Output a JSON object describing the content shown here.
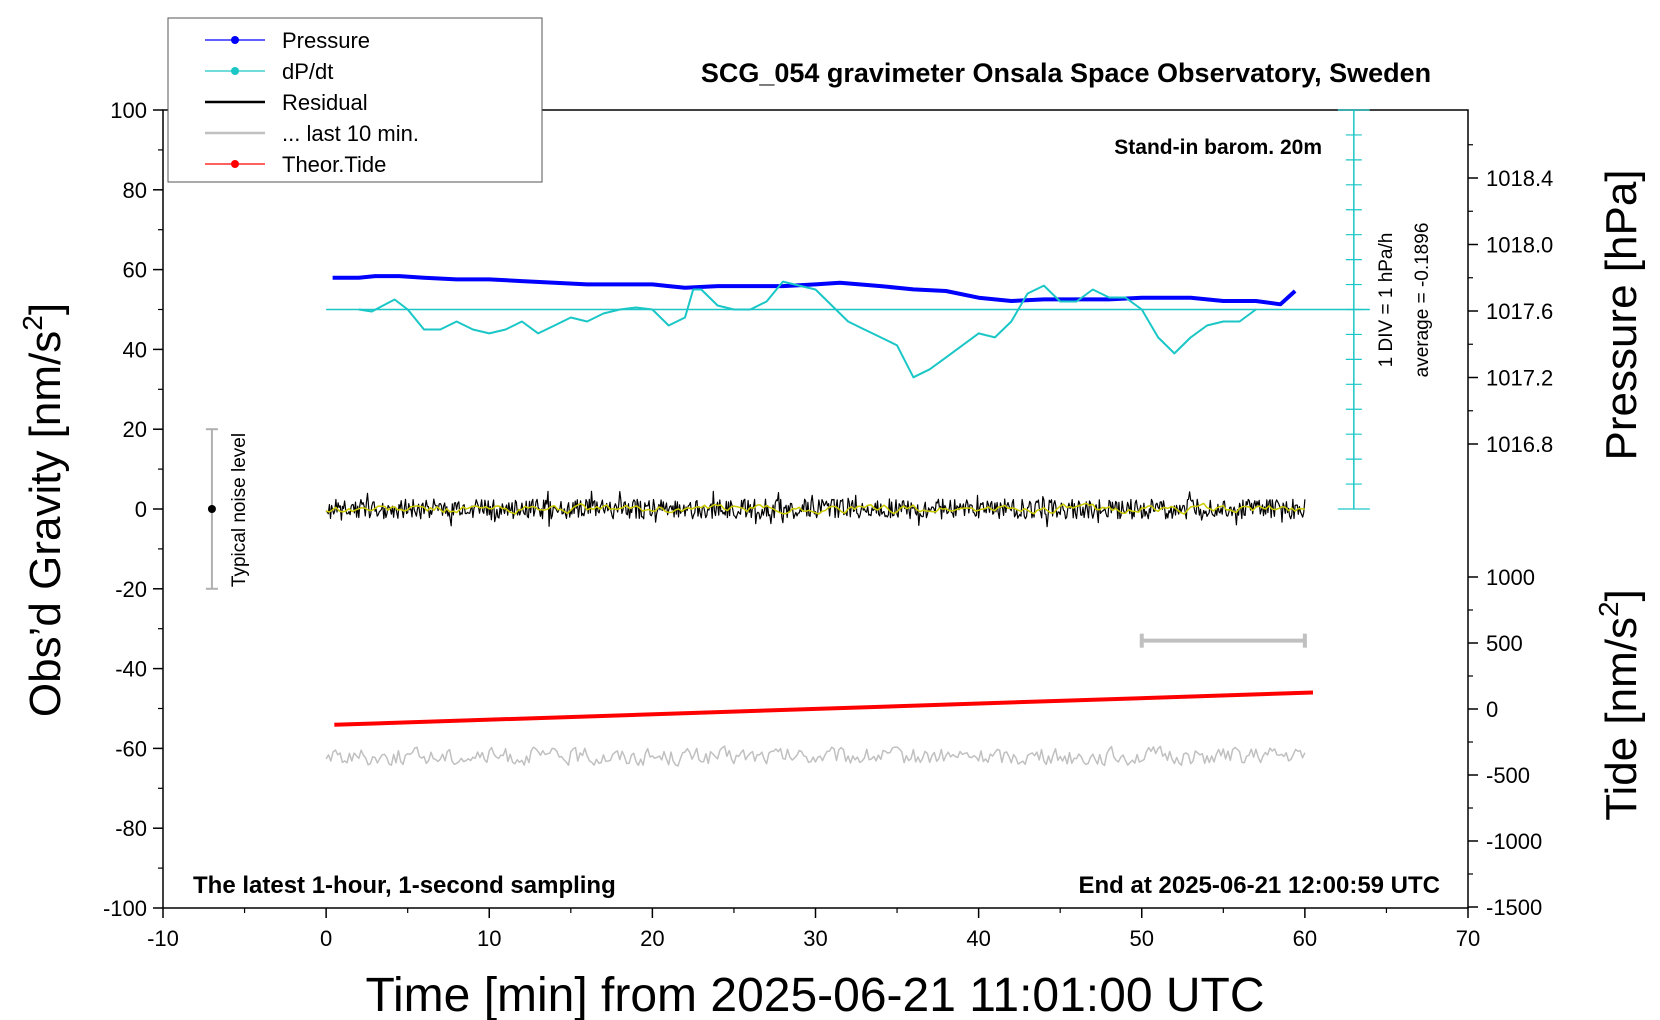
{
  "chart_data": {
    "type": "line",
    "title": "SCG_054 gravimeter Onsala Space Observatory, Sweden",
    "subtitle": "Stand-in barom. 20m",
    "footer_left": "The latest 1-hour, 1-second sampling",
    "footer_right": "End at 2025-06-21 12:00:59 UTC",
    "xlabel": "Time [min] from 2025-06-21 11:01:00 UTC",
    "xlim": [
      -10,
      70
    ],
    "xticks": [
      "-10",
      "0",
      "10",
      "20",
      "30",
      "40",
      "50",
      "60",
      "70"
    ],
    "ylabel_left": "Obs’d Gravity [nm/s",
    "ylabel_left_sup": "2",
    "ylabel_left_end": "]",
    "ylim": [
      -100,
      100
    ],
    "yticks_left": [
      "-100",
      "-80",
      "-60",
      "-40",
      "-20",
      "0",
      "20",
      "40",
      "60",
      "80",
      "100"
    ],
    "pressure_axis": {
      "label": "Pressure [hPa]",
      "ticks": [
        "1016.8",
        "1017.2",
        "1017.6",
        "1018.0",
        "1018.4"
      ],
      "tick_values": [
        1016.8,
        1017.2,
        1017.6,
        1018.0,
        1018.4
      ]
    },
    "tide_axis": {
      "label": "Tide [nm/s",
      "label_sup": "2",
      "label_end": "]",
      "ticks": [
        "-1500",
        "-1000",
        "-500",
        "0",
        "500",
        "1000"
      ],
      "tick_values": [
        -1500,
        -1000,
        -500,
        0,
        500,
        1000
      ]
    },
    "dpdt_scale": {
      "label1": "1 DIV = 1 hPa/h",
      "label2": "average = -0.1896",
      "baseline_gravity": 50
    },
    "noise_label": "Typical noise level",
    "noise_bar": {
      "x": -7,
      "center": 0,
      "half_range": 20
    },
    "ten_min_bar": {
      "x_start": 50,
      "x_end": 60,
      "y": -33
    },
    "legend": [
      {
        "label": "Pressure",
        "color": "#0000ff",
        "marker": "dot"
      },
      {
        "label": "dP/dt",
        "color": "#1ac6c6",
        "marker": "dot"
      },
      {
        "label": "Residual",
        "color": "#000000",
        "marker": "none"
      },
      {
        "label": "... last 10 min.",
        "color": "#c0c0c0",
        "marker": "none"
      },
      {
        "label": "Theor.Tide",
        "color": "#ff0000",
        "marker": "dot"
      }
    ],
    "series": [
      {
        "name": "Pressure",
        "color": "#0000ff",
        "axis": "pressure",
        "x": [
          0.4,
          2,
          3,
          4.5,
          6,
          8,
          10,
          12,
          14,
          16,
          18,
          20,
          21,
          22,
          24,
          26,
          28,
          30,
          31.5,
          34,
          36,
          38,
          40,
          42,
          44,
          46,
          48,
          50,
          53,
          55,
          57,
          58.5,
          59.4
        ],
        "values": [
          1017.8,
          1017.8,
          1017.81,
          1017.81,
          1017.8,
          1017.79,
          1017.79,
          1017.78,
          1017.77,
          1017.76,
          1017.76,
          1017.76,
          1017.75,
          1017.74,
          1017.75,
          1017.75,
          1017.75,
          1017.76,
          1017.77,
          1017.75,
          1017.73,
          1017.72,
          1017.68,
          1017.66,
          1017.67,
          1017.67,
          1017.67,
          1017.68,
          1017.68,
          1017.66,
          1017.66,
          1017.64,
          1017.72
        ]
      },
      {
        "name": "dP/dt",
        "color": "#1ac6c6",
        "axis": "gravity",
        "x": [
          2,
          2.8,
          3.5,
          4.2,
          5,
          6,
          7,
          8,
          9,
          10,
          11,
          12,
          13,
          14,
          15,
          16,
          17,
          18,
          19,
          20,
          21,
          22,
          22.5,
          23,
          24,
          25,
          26,
          27,
          28,
          29,
          30,
          31,
          32,
          33,
          34,
          35,
          36,
          37,
          38,
          39,
          40,
          41,
          42,
          43,
          44,
          45,
          46,
          47,
          48,
          49,
          50,
          51,
          52,
          53,
          54,
          55,
          56,
          57
        ],
        "values": [
          50,
          49.5,
          51,
          52.5,
          50,
          45,
          45,
          47,
          45,
          44,
          45,
          47,
          44,
          46,
          48,
          47,
          49,
          50,
          50.5,
          50,
          46,
          48,
          55,
          55,
          51,
          50,
          50,
          52,
          57,
          56,
          55,
          51,
          47,
          45,
          43,
          41,
          33,
          35,
          38,
          41,
          44,
          43,
          47,
          54,
          56,
          52,
          52,
          55,
          53,
          53,
          50,
          43,
          39,
          43,
          46,
          47,
          47,
          50
        ]
      },
      {
        "name": "Residual",
        "color": "#000000",
        "axis": "gravity",
        "x_range": [
          0,
          60
        ],
        "mean": 0,
        "amplitude": 2.5
      },
      {
        "name": "... last 10 min.",
        "color": "#c0c0c0",
        "axis": "gravity",
        "x_range": [
          0,
          60
        ],
        "mean": -62,
        "amplitude": 2
      },
      {
        "name": "Theor.Tide",
        "color": "#ff0000",
        "axis": "tide",
        "x": [
          0.5,
          60.5
        ],
        "values": [
          -120,
          125
        ]
      },
      {
        "name": "Residual smoothed",
        "color": "#cccc00",
        "axis": "gravity",
        "x_range": [
          0,
          60
        ],
        "mean": 0,
        "amplitude": 0.8
      }
    ]
  }
}
